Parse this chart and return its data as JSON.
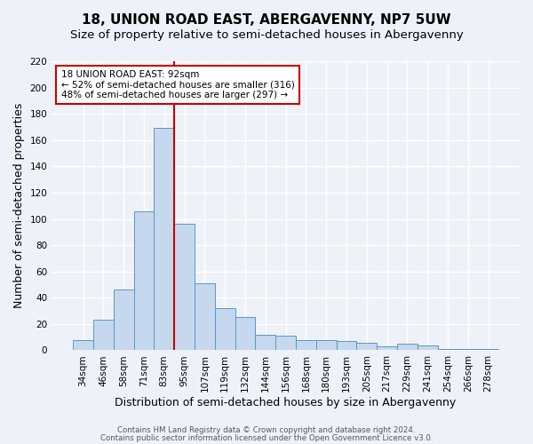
{
  "title": "18, UNION ROAD EAST, ABERGAVENNY, NP7 5UW",
  "subtitle": "Size of property relative to semi-detached houses in Abergavenny",
  "xlabel": "Distribution of semi-detached houses by size in Abergavenny",
  "ylabel": "Number of semi-detached properties",
  "categories": [
    "34sqm",
    "46sqm",
    "58sqm",
    "71sqm",
    "83sqm",
    "95sqm",
    "107sqm",
    "119sqm",
    "132sqm",
    "144sqm",
    "156sqm",
    "168sqm",
    "180sqm",
    "193sqm",
    "205sqm",
    "217sqm",
    "229sqm",
    "241sqm",
    "254sqm",
    "266sqm",
    "278sqm"
  ],
  "values": [
    8,
    23,
    46,
    106,
    169,
    96,
    51,
    32,
    25,
    12,
    11,
    8,
    8,
    7,
    6,
    3,
    5,
    4,
    1,
    1,
    1
  ],
  "bar_color": "#c5d8ed",
  "bar_edge_color": "#5a96c8",
  "marker_label": "18 UNION ROAD EAST: 92sqm",
  "marker_pct_smaller": 52,
  "marker_count_smaller": 316,
  "marker_pct_larger": 48,
  "marker_count_larger": 297,
  "marker_color": "#cc0000",
  "ylim": [
    0,
    220
  ],
  "yticks": [
    0,
    20,
    40,
    60,
    80,
    100,
    120,
    140,
    160,
    180,
    200,
    220
  ],
  "annotation_box_color": "#cc0000",
  "footer_line1": "Contains HM Land Registry data © Crown copyright and database right 2024.",
  "footer_line2": "Contains public sector information licensed under the Open Government Licence v3.0.",
  "bg_color": "#eef2f8",
  "grid_color": "#ffffff",
  "title_fontsize": 11,
  "subtitle_fontsize": 9.5,
  "axis_label_fontsize": 9,
  "tick_fontsize": 7.5
}
